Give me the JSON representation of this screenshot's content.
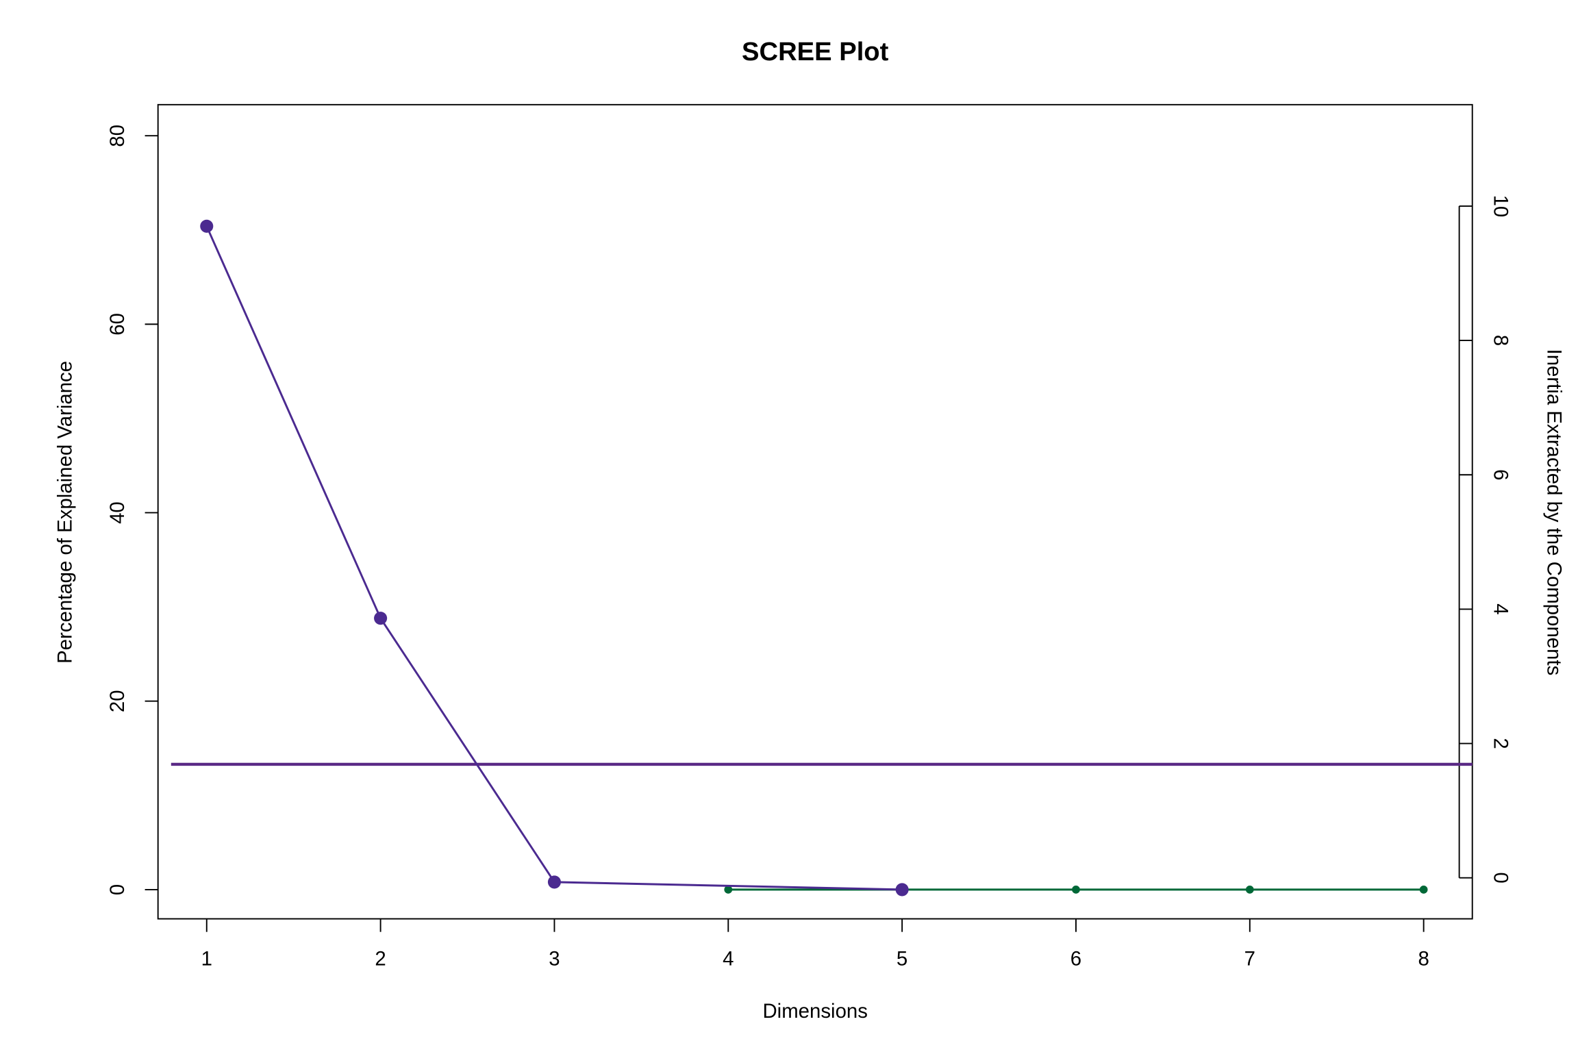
{
  "chart_data": {
    "type": "line",
    "title": "SCREE Plot",
    "x_label": "Dimensions",
    "y_label": "Percentage of Explained Variance",
    "y2_label": "Inertia Extracted by the Components",
    "xlim": [
      0.72,
      8.28
    ],
    "xticks": [
      1,
      2,
      3,
      4,
      5,
      6,
      7,
      8
    ],
    "ylim": [
      -3.1,
      83.3
    ],
    "yticks": [
      0,
      20,
      40,
      60,
      80
    ],
    "y2lim": [
      -0.61,
      11.51
    ],
    "y2ticks": [
      0,
      2,
      4,
      6,
      8,
      10
    ],
    "hline": {
      "value": 13.3,
      "color": "#5b2a86"
    },
    "series": [
      {
        "color": "#006837",
        "marker": "small",
        "x": [
          4,
          5,
          6,
          7,
          8
        ],
        "values": [
          0,
          0,
          0,
          0,
          0
        ]
      },
      {
        "color": "#4b2a90",
        "marker": "large",
        "x": [
          1,
          2,
          3,
          5
        ],
        "values": [
          70.4,
          28.8,
          0.8,
          0
        ]
      }
    ]
  }
}
